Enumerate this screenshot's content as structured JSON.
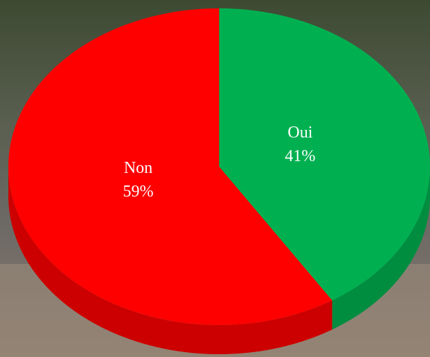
{
  "chart_data": {
    "type": "pie",
    "categories": [
      "Oui",
      "Non"
    ],
    "values": [
      41,
      59
    ],
    "value_labels": [
      "41%",
      "59%"
    ],
    "colors": [
      "#00b050",
      "#ff0000"
    ]
  }
}
